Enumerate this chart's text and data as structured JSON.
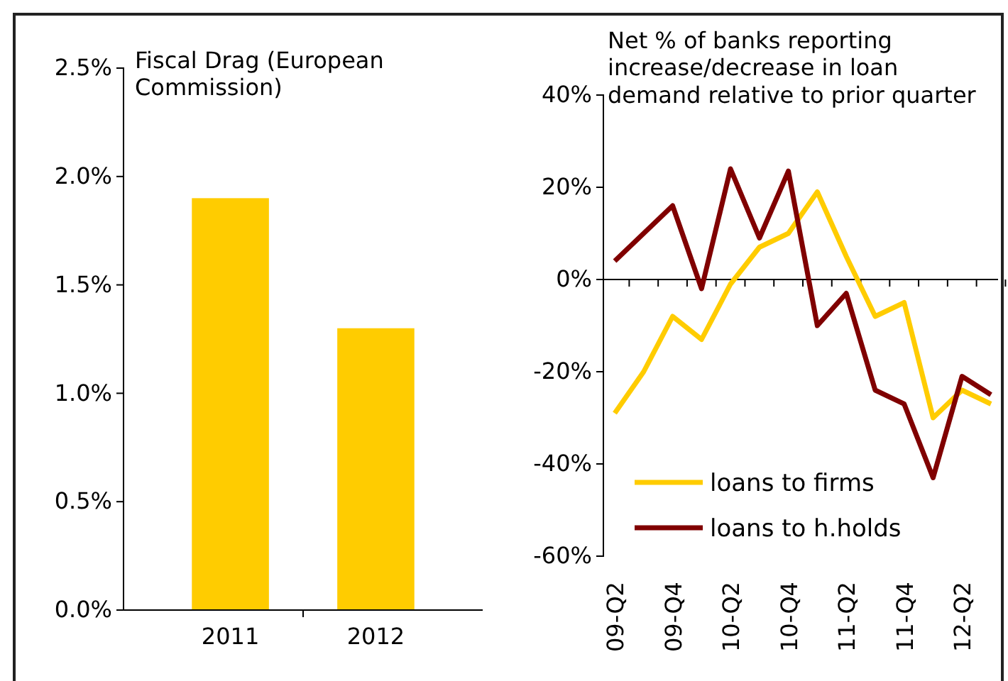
{
  "chart_data": [
    {
      "type": "bar",
      "title": "Fiscal Drag (European Commission)",
      "categories": [
        "2011",
        "2012"
      ],
      "values": [
        1.9,
        1.3
      ],
      "color": "#ffcc00",
      "ylim": [
        0,
        2.5
      ],
      "yticks": [
        {
          "value": 0,
          "label": "0.0%"
        },
        {
          "value": 0.5,
          "label": "0.5%"
        },
        {
          "value": 1,
          "label": "1.0%"
        },
        {
          "value": 1.5,
          "label": "1.5%"
        },
        {
          "value": 2,
          "label": "2.0%"
        },
        {
          "value": 2.5,
          "label": "2.5%"
        }
      ],
      "grid": false
    },
    {
      "type": "line",
      "title": "Net % of banks reporting increase/decrease in loan demand relative to  prior quarter",
      "categories": [
        "09-Q2",
        null,
        "09-Q4",
        null,
        "10-Q2",
        null,
        "10-Q4",
        null,
        "11-Q2",
        null,
        "11-Q4",
        null,
        "12-Q2",
        null
      ],
      "ylim": [
        -60,
        40
      ],
      "yticks": [
        {
          "value": -60,
          "label": "-60%"
        },
        {
          "value": -40,
          "label": "-40%"
        },
        {
          "value": -20,
          "label": "-20%"
        },
        {
          "value": 0,
          "label": "0%"
        },
        {
          "value": 20,
          "label": "20%"
        },
        {
          "value": 40,
          "label": "40%"
        }
      ],
      "legend": "bottom",
      "series": [
        {
          "name": "loans to firms",
          "color": "#ffcc00",
          "values": [
            -29,
            -20,
            -8,
            -13,
            -1,
            7,
            10,
            19,
            5,
            -8,
            -5,
            -30,
            -24,
            -27
          ]
        },
        {
          "name": "loans to h.holds",
          "color": "#800000",
          "values": [
            4,
            10,
            16,
            -2,
            24,
            9,
            23.5,
            -10,
            -3,
            -24,
            -27,
            -43,
            -21,
            -25
          ]
        }
      ]
    }
  ]
}
